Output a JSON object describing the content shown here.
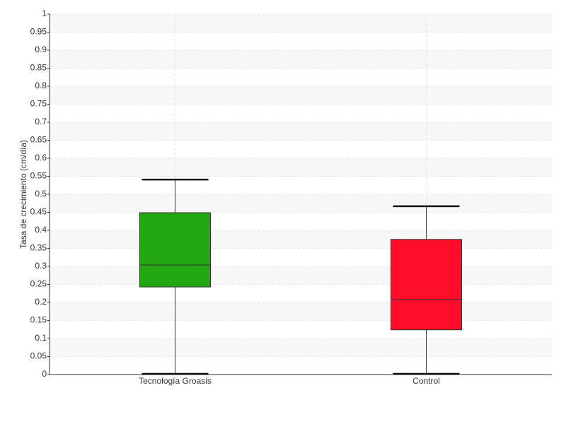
{
  "chart_data": {
    "type": "box",
    "y_label": "Tasa de crecimiento (cm/día)",
    "categories": [
      "Tecnología Groasis",
      "Control"
    ],
    "colors": [
      "#22a612",
      "#ff0d29"
    ],
    "min": [
      0,
      0
    ],
    "q1": [
      0.243,
      0.124
    ],
    "median": [
      0.304,
      0.208
    ],
    "q3": [
      0.449,
      0.375
    ],
    "max": [
      0.541,
      0.467
    ],
    "ylim": [
      0,
      1
    ],
    "yticks": [
      0,
      0.05,
      0.1,
      0.15,
      0.2,
      0.25,
      0.3,
      0.35,
      0.4,
      0.45,
      0.5,
      0.55,
      0.6,
      0.65,
      0.7,
      0.75,
      0.8,
      0.85,
      0.9,
      0.95,
      1
    ],
    "grid": true
  }
}
